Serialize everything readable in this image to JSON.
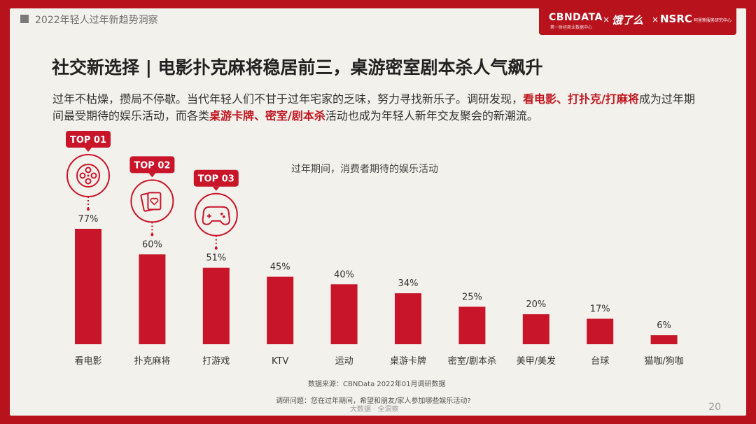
{
  "header": {
    "section": "2022年轻人过年新趋势洞察"
  },
  "brand": {
    "cbn": "CBNDATA",
    "cbn_sub": "第一财经商业数据中心",
    "x": "×",
    "ele": "饿了么",
    "nsrc": "NSRC",
    "nsrc_sub": "阿里新服务研究中心"
  },
  "title": "社交新选择 | 电影扑克麻将稳居前三，桌游密室剧本杀人气飙升",
  "description": {
    "part1": "过年不枯燥，攒局不停歇。当代年轻人们不甘于过年宅家的乏味，努力寻找新乐子。调研发现，",
    "hl1": "看电影、打扑克/打麻将",
    "part2": "成为过年期间最受期待的娱乐活动，而各类",
    "hl2": "桌游卡牌、密室/剧本杀",
    "part3": "活动也成为年轻人新年交友聚会的新潮流。"
  },
  "chart_data": {
    "type": "bar",
    "title": "过年期间，消费者期待的娱乐活动",
    "categories": [
      "看电影",
      "扑克麻将",
      "打游戏",
      "KTV",
      "运动",
      "桌游卡牌",
      "密室/剧本杀",
      "美甲/美发",
      "台球",
      "猫咖/狗咖"
    ],
    "values": [
      77,
      60,
      51,
      45,
      40,
      34,
      25,
      20,
      17,
      6
    ],
    "value_labels": [
      "77%",
      "60%",
      "51%",
      "45%",
      "40%",
      "34%",
      "25%",
      "20%",
      "17%",
      "6%"
    ],
    "unit": "%",
    "ylim": [
      0,
      77
    ],
    "bar_color": "#c8152a",
    "top_badges": [
      {
        "index": 0,
        "label": "TOP 01",
        "icon": "film-reel-icon"
      },
      {
        "index": 1,
        "label": "TOP 02",
        "icon": "playing-cards-icon"
      },
      {
        "index": 2,
        "label": "TOP 03",
        "icon": "gamepad-icon"
      }
    ]
  },
  "footer": {
    "source": "数据来源：CBNData 2022年01月调研数据",
    "question": "调研问题：您在过年期间，希望和朋友/家人参加哪些娱乐活动?",
    "note": "大数据 · 全洞察",
    "page": "20"
  },
  "colors": {
    "accent": "#b8131d",
    "bar": "#c8152a",
    "background": "#f3f1ec"
  }
}
